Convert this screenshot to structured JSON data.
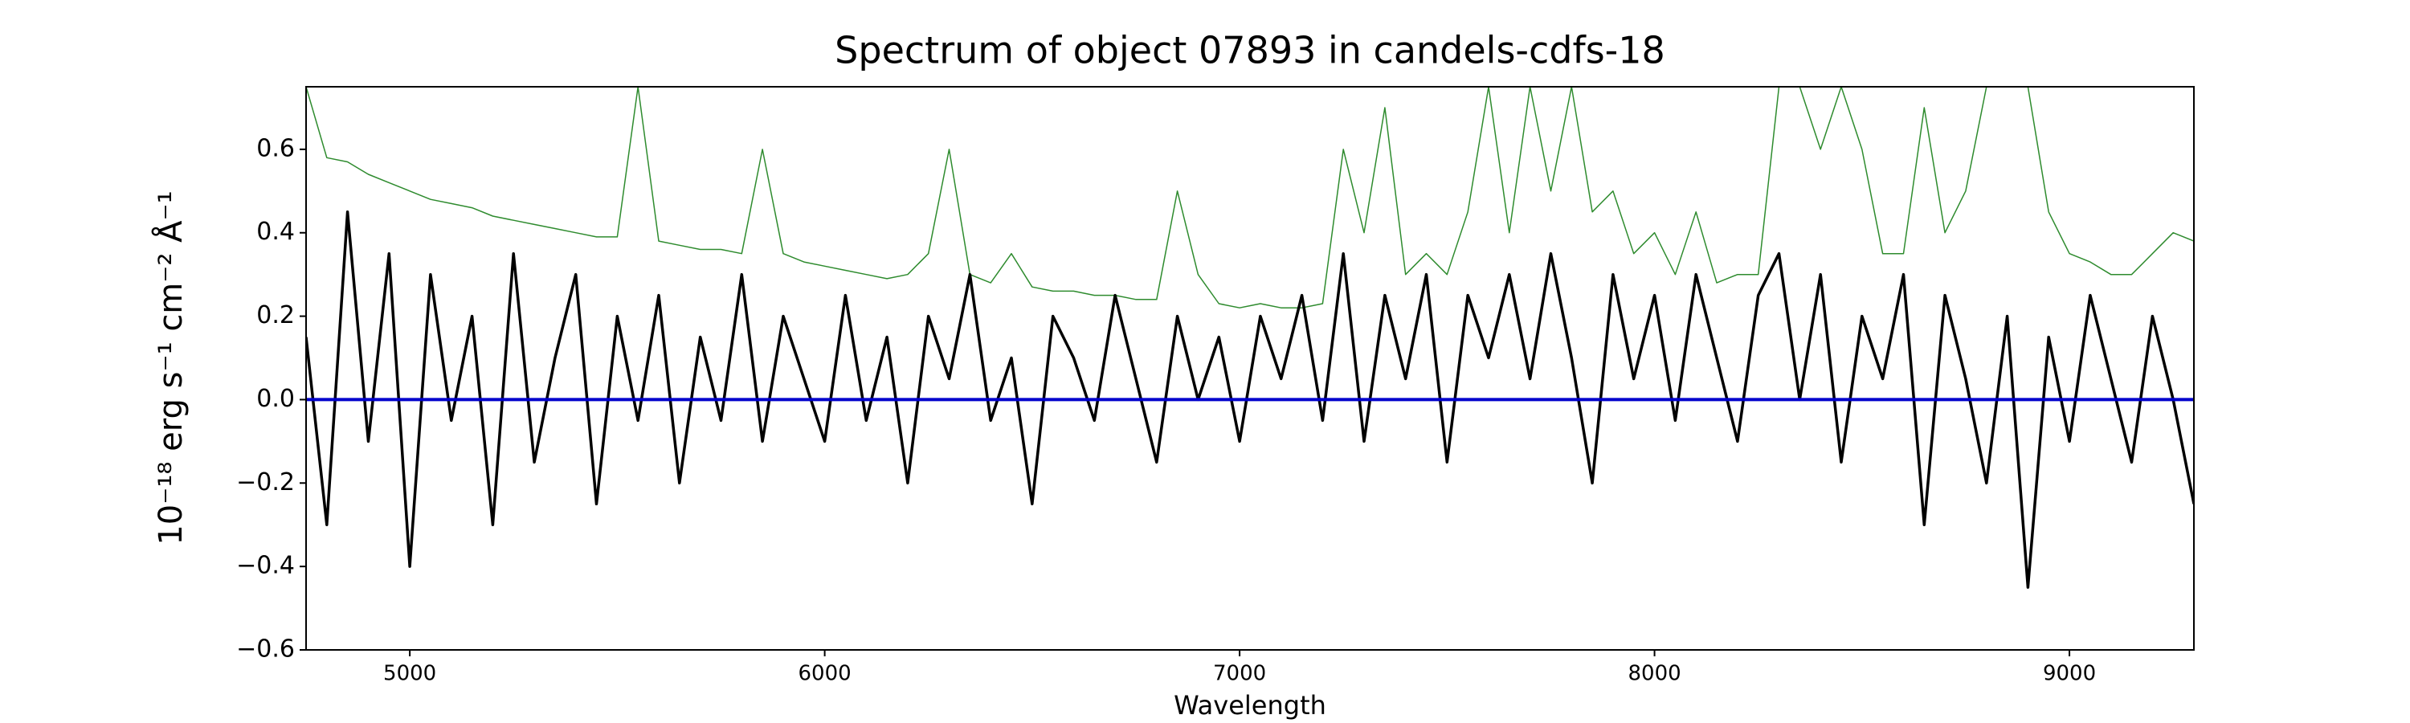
{
  "chart_data": {
    "type": "line",
    "title": "Spectrum of object 07893 in candels-cdfs-18",
    "xlabel": "Wavelength",
    "ylabel": "10⁻¹⁸ erg s⁻¹ cm⁻² Å⁻¹",
    "xlim": [
      4750,
      9300
    ],
    "ylim": [
      -0.6,
      0.75
    ],
    "xticks": [
      5000,
      6000,
      7000,
      8000,
      9000
    ],
    "yticks": [
      {
        "value": -0.6,
        "label": "−0.6"
      },
      {
        "value": -0.4,
        "label": "−0.4"
      },
      {
        "value": -0.2,
        "label": "−0.2"
      },
      {
        "value": 0.0,
        "label": "0.0"
      },
      0.2,
      0.4,
      0.6
    ],
    "x": [
      4750,
      4800,
      4850,
      4900,
      4950,
      5000,
      5050,
      5100,
      5150,
      5200,
      5250,
      5300,
      5350,
      5400,
      5450,
      5500,
      5550,
      5600,
      5650,
      5700,
      5750,
      5800,
      5850,
      5900,
      5950,
      6000,
      6050,
      6100,
      6150,
      6200,
      6250,
      6300,
      6350,
      6400,
      6450,
      6500,
      6550,
      6600,
      6650,
      6700,
      6750,
      6800,
      6850,
      6900,
      6950,
      7000,
      7050,
      7100,
      7150,
      7200,
      7250,
      7300,
      7350,
      7400,
      7450,
      7500,
      7550,
      7600,
      7650,
      7700,
      7750,
      7800,
      7850,
      7900,
      7950,
      8000,
      8050,
      8100,
      8150,
      8200,
      8250,
      8300,
      8350,
      8400,
      8450,
      8500,
      8550,
      8600,
      8650,
      8700,
      8750,
      8800,
      8850,
      8900,
      8950,
      9000,
      9050,
      9100,
      9150,
      9200,
      9250,
      9300
    ],
    "series": [
      {
        "color": "#2e8b2e",
        "width": 1.5,
        "values": [
          0.75,
          0.58,
          0.57,
          0.54,
          0.52,
          0.5,
          0.48,
          0.47,
          0.46,
          0.44,
          0.43,
          0.42,
          0.41,
          0.4,
          0.39,
          0.39,
          0.75,
          0.38,
          0.37,
          0.36,
          0.36,
          0.35,
          0.6,
          0.35,
          0.33,
          0.32,
          0.31,
          0.3,
          0.29,
          0.3,
          0.35,
          0.6,
          0.3,
          0.28,
          0.35,
          0.27,
          0.26,
          0.26,
          0.25,
          0.25,
          0.24,
          0.24,
          0.5,
          0.3,
          0.23,
          0.22,
          0.23,
          0.22,
          0.22,
          0.23,
          0.6,
          0.4,
          0.7,
          0.3,
          0.35,
          0.3,
          0.45,
          0.75,
          0.4,
          0.75,
          0.5,
          0.75,
          0.45,
          0.5,
          0.35,
          0.4,
          0.3,
          0.45,
          0.28,
          0.3,
          0.3,
          0.75,
          0.75,
          0.6,
          0.75,
          0.6,
          0.35,
          0.35,
          0.7,
          0.4,
          0.5,
          0.75,
          0.75,
          0.75,
          0.45,
          0.35,
          0.33,
          0.3,
          0.3,
          0.35,
          0.4,
          0.38
        ]
      },
      {
        "color": "#000000",
        "width": 3.5,
        "values": [
          0.15,
          -0.3,
          0.45,
          -0.1,
          0.35,
          -0.4,
          0.3,
          -0.05,
          0.2,
          -0.3,
          0.35,
          -0.15,
          0.1,
          0.3,
          -0.25,
          0.2,
          -0.05,
          0.25,
          -0.2,
          0.15,
          -0.05,
          0.3,
          -0.1,
          0.2,
          0.05,
          -0.1,
          0.25,
          -0.05,
          0.15,
          -0.2,
          0.2,
          0.05,
          0.3,
          -0.05,
          0.1,
          -0.25,
          0.2,
          0.1,
          -0.05,
          0.25,
          0.05,
          -0.15,
          0.2,
          0.0,
          0.15,
          -0.1,
          0.2,
          0.05,
          0.25,
          -0.05,
          0.35,
          -0.1,
          0.25,
          0.05,
          0.3,
          -0.15,
          0.25,
          0.1,
          0.3,
          0.05,
          0.35,
          0.1,
          -0.2,
          0.3,
          0.05,
          0.25,
          -0.05,
          0.3,
          0.1,
          -0.1,
          0.25,
          0.35,
          0.0,
          0.3,
          -0.15,
          0.2,
          0.05,
          0.3,
          -0.3,
          0.25,
          0.05,
          -0.2,
          0.2,
          -0.45,
          0.15,
          -0.1,
          0.25,
          0.05,
          -0.15,
          0.2,
          0.0,
          -0.25
        ]
      },
      {
        "color": "#0000cc",
        "width": 4,
        "values": [
          0,
          0,
          0,
          0,
          0,
          0,
          0,
          0,
          0,
          0,
          0,
          0,
          0,
          0,
          0,
          0,
          0,
          0,
          0,
          0,
          0,
          0,
          0,
          0,
          0,
          0,
          0,
          0,
          0,
          0,
          0,
          0,
          0,
          0,
          0,
          0,
          0,
          0,
          0,
          0,
          0,
          0,
          0,
          0,
          0,
          0,
          0,
          0,
          0,
          0,
          0,
          0,
          0,
          0,
          0,
          0,
          0,
          0,
          0,
          0,
          0,
          0,
          0,
          0,
          0,
          0,
          0,
          0,
          0,
          0,
          0,
          0,
          0,
          0,
          0,
          0,
          0,
          0,
          0,
          0,
          0,
          0,
          0,
          0,
          0,
          0,
          0,
          0,
          0,
          0,
          0,
          0
        ]
      }
    ]
  }
}
